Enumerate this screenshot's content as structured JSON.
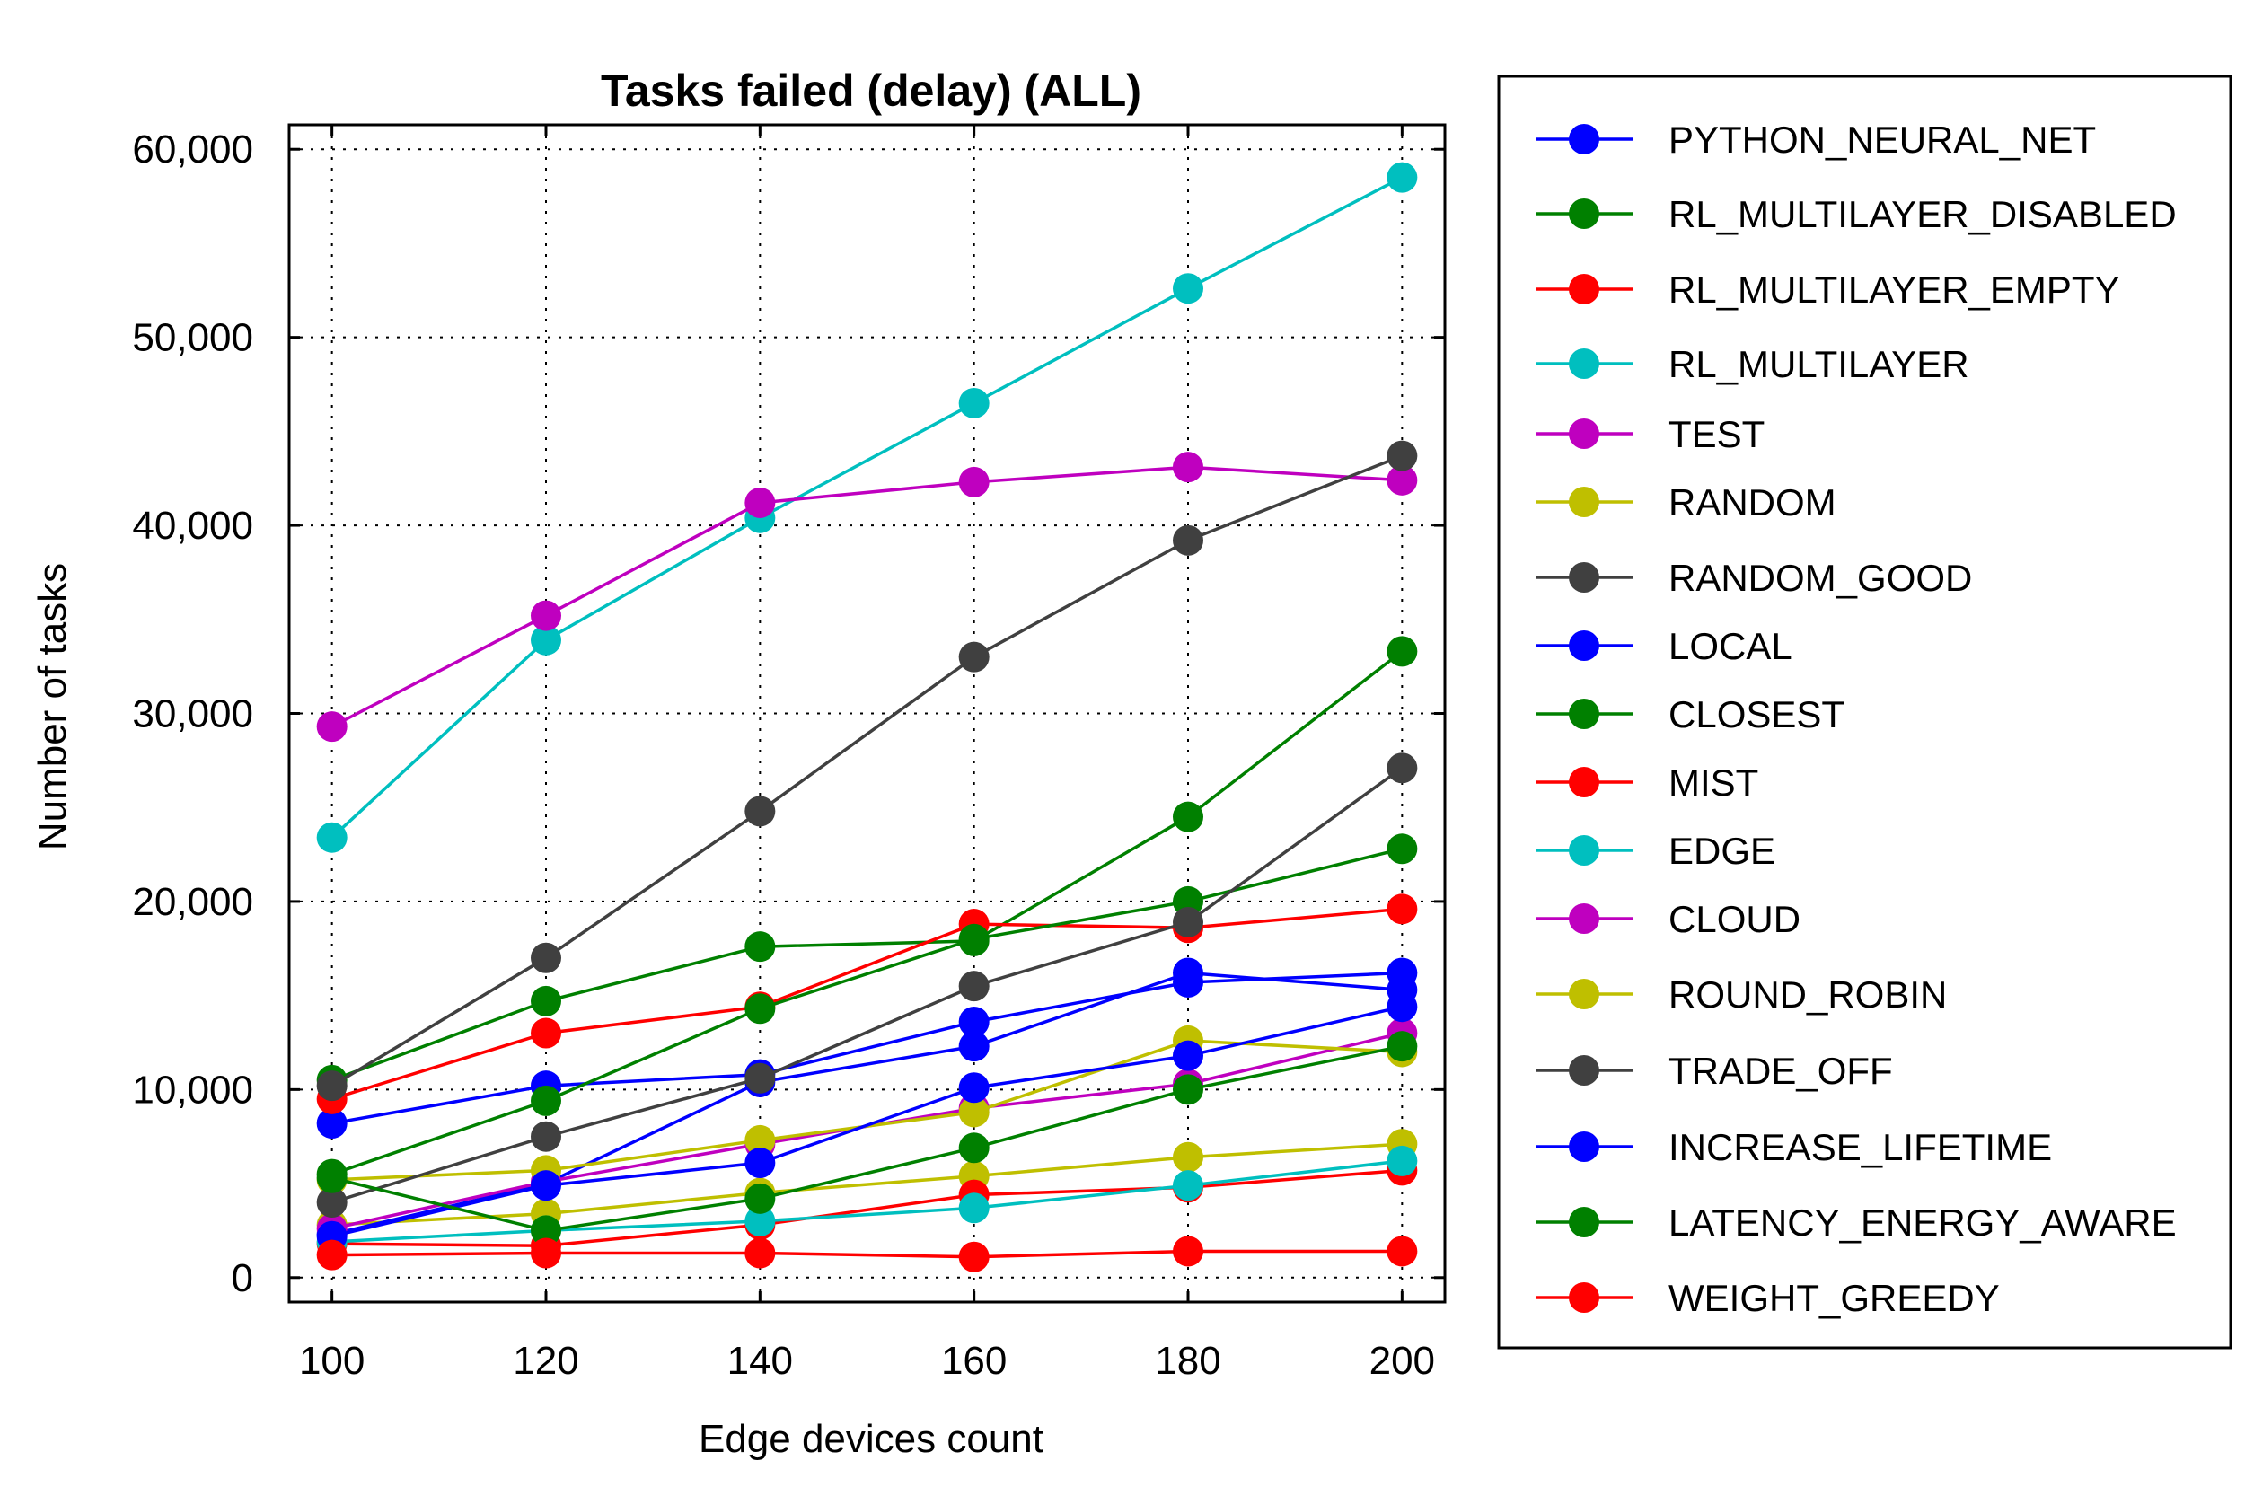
{
  "chart_data": {
    "type": "line",
    "title": "Tasks failed (delay) (ALL)",
    "xlabel": "Edge devices count",
    "ylabel": "Number of tasks",
    "x": [
      100,
      120,
      140,
      160,
      180,
      200
    ],
    "xticks": [
      "100",
      "120",
      "140",
      "160",
      "180",
      "200"
    ],
    "xlim": [
      96,
      204
    ],
    "ylim": [
      -1300,
      61300
    ],
    "yticks": [
      0,
      10000,
      20000,
      30000,
      40000,
      50000,
      60000
    ],
    "ytick_labels": [
      "0",
      "10,000",
      "20,000",
      "30,000",
      "40,000",
      "50,000",
      "60,000"
    ],
    "grid": true,
    "legend_position": "right",
    "series": [
      {
        "name": "PYTHON_NEURAL_NET",
        "color": "#0000ff",
        "values": [
          8200,
          10200,
          10800,
          13600,
          15700,
          16200
        ]
      },
      {
        "name": "RL_MULTILAYER_DISABLED",
        "color": "#008000",
        "values": [
          10500,
          14700,
          17600,
          17900,
          24500,
          33300
        ]
      },
      {
        "name": "RL_MULTILAYER_EMPTY",
        "color": "#ff0000",
        "values": [
          9500,
          13000,
          14400,
          18800,
          18600,
          19600
        ]
      },
      {
        "name": "RL_MULTILAYER",
        "color": "#00bfbf",
        "values": [
          23400,
          33900,
          40400,
          46500,
          52600,
          58500
        ]
      },
      {
        "name": "TEST",
        "color": "#bf00bf",
        "values": [
          29300,
          35200,
          41200,
          42300,
          43100,
          42400
        ]
      },
      {
        "name": "RANDOM",
        "color": "#bfbf00",
        "values": [
          2800,
          3400,
          4500,
          5400,
          6400,
          7100
        ]
      },
      {
        "name": "RANDOM_GOOD",
        "color": "#404040",
        "values": [
          10200,
          17000,
          24800,
          33000,
          39200,
          43700
        ]
      },
      {
        "name": "LOCAL",
        "color": "#0000ff",
        "values": [
          2300,
          5000,
          10400,
          12300,
          16200,
          15300
        ]
      },
      {
        "name": "CLOSEST",
        "color": "#008000",
        "values": [
          5500,
          9400,
          14300,
          18000,
          20000,
          22800
        ]
      },
      {
        "name": "MIST",
        "color": "#ff0000",
        "values": [
          1800,
          1700,
          2800,
          4400,
          4800,
          5700
        ]
      },
      {
        "name": "EDGE",
        "color": "#00bfbf",
        "values": [
          1900,
          2500,
          3000,
          3700,
          4900,
          6200
        ]
      },
      {
        "name": "CLOUD",
        "color": "#bf00bf",
        "values": [
          2600,
          5100,
          7100,
          9000,
          10300,
          13000
        ]
      },
      {
        "name": "ROUND_ROBIN",
        "color": "#bfbf00",
        "values": [
          5200,
          5700,
          7300,
          8800,
          12600,
          12000
        ]
      },
      {
        "name": "TRADE_OFF",
        "color": "#404040",
        "values": [
          4000,
          7500,
          10600,
          15500,
          18900,
          27100
        ]
      },
      {
        "name": "INCREASE_LIFETIME",
        "color": "#0000ff",
        "values": [
          2200,
          4900,
          6100,
          10100,
          11800,
          14400
        ]
      },
      {
        "name": "LATENCY_ENERGY_AWARE",
        "color": "#008000",
        "values": [
          5300,
          2500,
          4200,
          6900,
          10000,
          12300
        ]
      },
      {
        "name": "WEIGHT_GREEDY",
        "color": "#ff0000",
        "values": [
          1200,
          1300,
          1300,
          1100,
          1400,
          1400
        ]
      }
    ]
  }
}
